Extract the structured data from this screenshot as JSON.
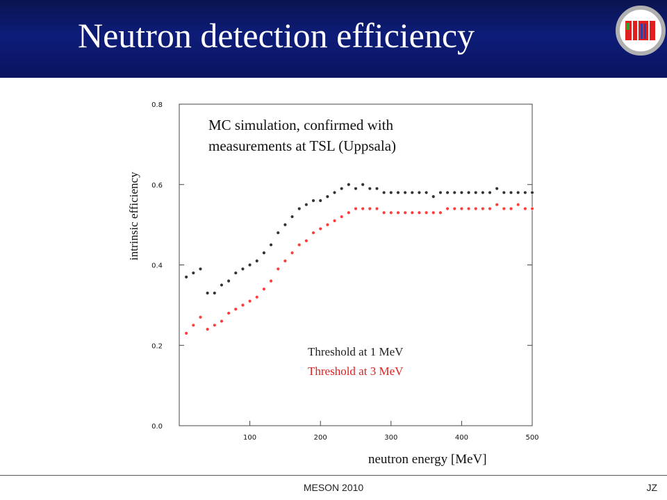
{
  "slide": {
    "title": "Neutron detection efficiency",
    "footer_center": "MESON 2010",
    "footer_right": "JZ"
  },
  "colors": {
    "header_bg": "#0d1c78",
    "series_1mev": "#333333",
    "series_3mev": "#ff3b3b",
    "logo_ring": "#b0b0b0",
    "logo_red": "#e02020",
    "logo_green": "#22a52a",
    "logo_blue": "#2d3fa8"
  },
  "logo": {
    "icon": "simi-logo-icon"
  },
  "chart_data": {
    "type": "scatter",
    "title": "",
    "annotation_line1": "MC  simulation, confirmed with",
    "annotation_line2": "measurements at TSL (Uppsala)",
    "xlabel": "neutron energy [MeV]",
    "ylabel": "intrinsic efficiency",
    "xlim": [
      0,
      500
    ],
    "ylim": [
      0.0,
      0.8
    ],
    "xticks": [
      "100",
      "200",
      "300",
      "400",
      "500"
    ],
    "yticks": [
      "0.0",
      "0.2",
      "0.4",
      "0.6",
      "0.8"
    ],
    "grid": false,
    "legend": "Threshold at 1 MeV / Threshold at 3 MeV text labels inside plot, lower center",
    "series": [
      {
        "name": "Threshold at 1 MeV",
        "color": "#333333",
        "x": [
          10,
          20,
          30,
          40,
          50,
          60,
          70,
          80,
          90,
          100,
          110,
          120,
          130,
          140,
          150,
          160,
          170,
          180,
          190,
          200,
          210,
          220,
          230,
          240,
          250,
          260,
          270,
          280,
          290,
          300,
          310,
          320,
          330,
          340,
          350,
          360,
          370,
          380,
          390,
          400,
          410,
          420,
          430,
          440,
          450,
          460,
          470,
          480,
          490,
          500
        ],
        "y": [
          0.37,
          0.38,
          0.39,
          0.33,
          0.33,
          0.35,
          0.36,
          0.38,
          0.39,
          0.4,
          0.41,
          0.43,
          0.45,
          0.48,
          0.5,
          0.52,
          0.54,
          0.55,
          0.56,
          0.56,
          0.57,
          0.58,
          0.59,
          0.6,
          0.59,
          0.6,
          0.59,
          0.59,
          0.58,
          0.58,
          0.58,
          0.58,
          0.58,
          0.58,
          0.58,
          0.57,
          0.58,
          0.58,
          0.58,
          0.58,
          0.58,
          0.58,
          0.58,
          0.58,
          0.59,
          0.58,
          0.58,
          0.58,
          0.58,
          0.58
        ]
      },
      {
        "name": "Threshold at 3 MeV",
        "color": "#ff3b3b",
        "x": [
          10,
          20,
          30,
          40,
          50,
          60,
          70,
          80,
          90,
          100,
          110,
          120,
          130,
          140,
          150,
          160,
          170,
          180,
          190,
          200,
          210,
          220,
          230,
          240,
          250,
          260,
          270,
          280,
          290,
          300,
          310,
          320,
          330,
          340,
          350,
          360,
          370,
          380,
          390,
          400,
          410,
          420,
          430,
          440,
          450,
          460,
          470,
          480,
          490,
          500
        ],
        "y": [
          0.23,
          0.25,
          0.27,
          0.24,
          0.25,
          0.26,
          0.28,
          0.29,
          0.3,
          0.31,
          0.32,
          0.34,
          0.36,
          0.39,
          0.41,
          0.43,
          0.45,
          0.46,
          0.48,
          0.49,
          0.5,
          0.51,
          0.52,
          0.53,
          0.54,
          0.54,
          0.54,
          0.54,
          0.53,
          0.53,
          0.53,
          0.53,
          0.53,
          0.53,
          0.53,
          0.53,
          0.53,
          0.54,
          0.54,
          0.54,
          0.54,
          0.54,
          0.54,
          0.54,
          0.55,
          0.54,
          0.54,
          0.55,
          0.54,
          0.54
        ]
      }
    ]
  }
}
